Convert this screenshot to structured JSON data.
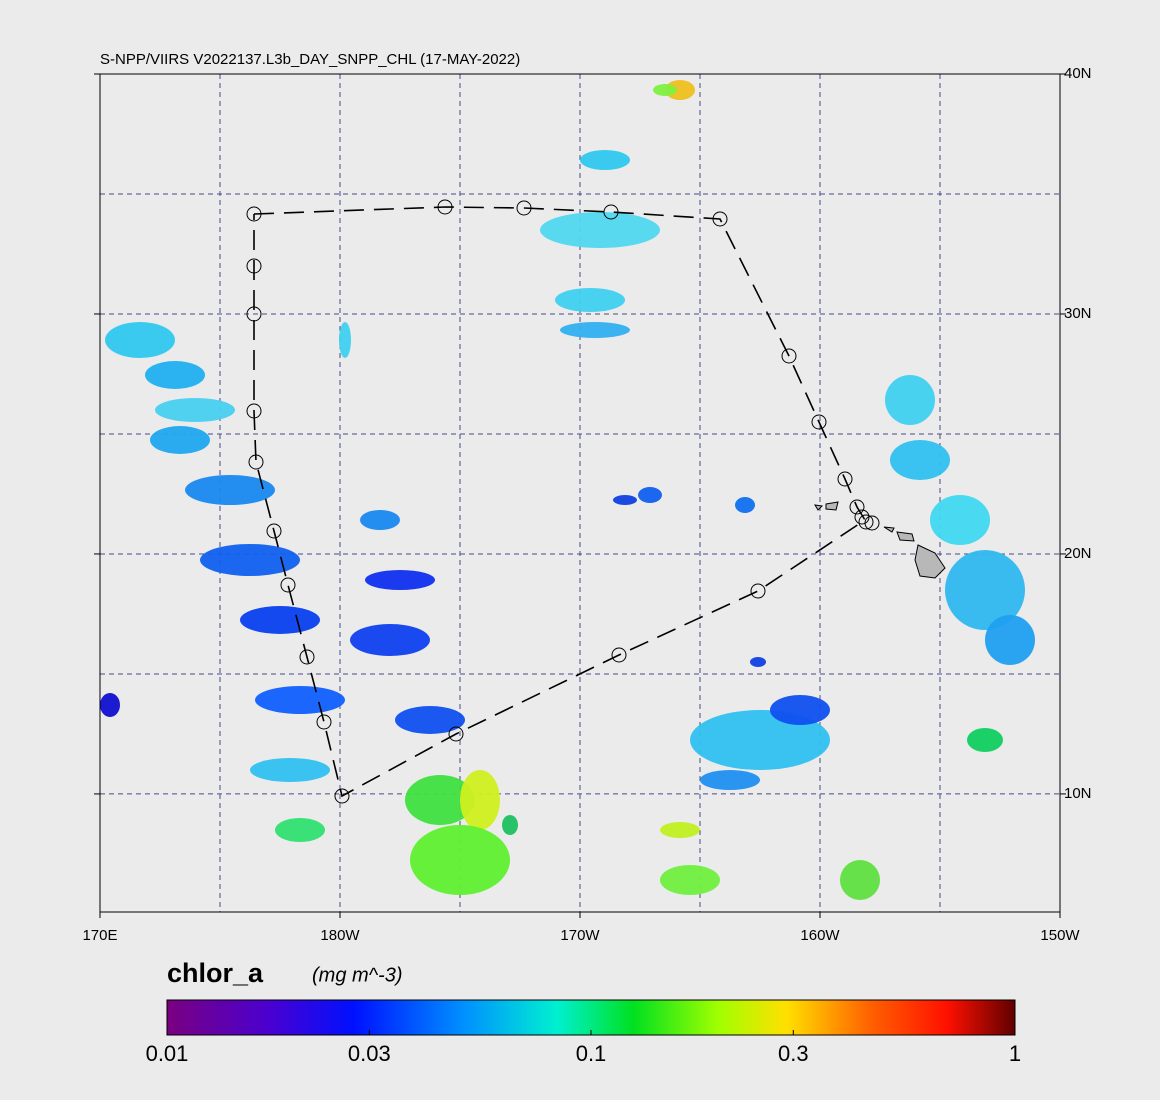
{
  "chart_data": {
    "type": "map",
    "title": "S-NPP/VIIRS V2022137.L3b_DAY_SNPP_CHL (17-MAY-2022)",
    "xlim": [
      170,
      210
    ],
    "ylim": [
      5.08,
      40
    ],
    "xticks": [
      {
        "value": 170,
        "label": "170E"
      },
      {
        "value": 180,
        "label": "180W"
      },
      {
        "value": 190,
        "label": "170W"
      },
      {
        "value": 200,
        "label": "160W"
      },
      {
        "value": 210,
        "label": "150W"
      }
    ],
    "yticks": [
      {
        "value": 10,
        "label": "10N"
      },
      {
        "value": 20,
        "label": "20N"
      },
      {
        "value": 30,
        "label": "30N"
      },
      {
        "value": 40,
        "label": "40N"
      }
    ],
    "xgrid": [
      175,
      180,
      185,
      190,
      195,
      200,
      205
    ],
    "ygrid": [
      10,
      15,
      20,
      25,
      30,
      35
    ],
    "grid": true,
    "colorbar": {
      "label": "chlor_a",
      "units": "(mg m^-3)",
      "range": [
        0.01,
        1
      ],
      "log": true,
      "ticks": [
        0.01,
        0.03,
        0.1,
        0.3,
        1
      ]
    }
  }
}
